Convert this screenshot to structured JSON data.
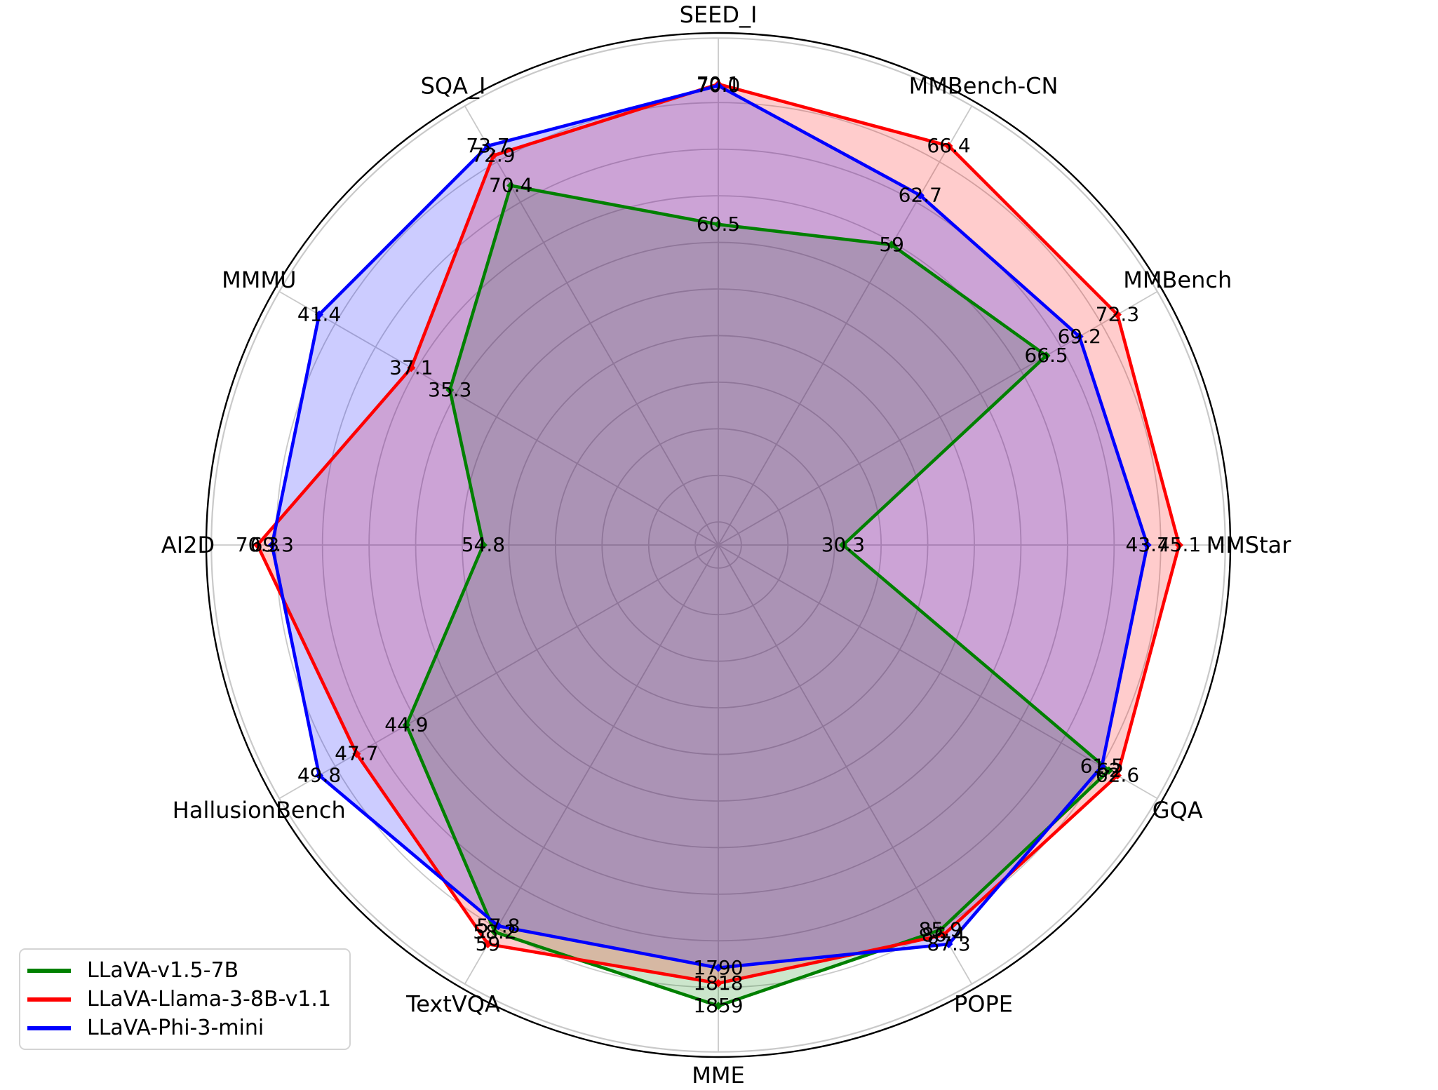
{
  "figure": {
    "background_color": "#ffffff",
    "grid_color": "#c9c9c9",
    "outline_color": "#000000"
  },
  "legend": {
    "position": "lower left",
    "items": [
      {
        "label": "LLaVA-v1.5-7B",
        "color": "#008000"
      },
      {
        "label": "LLaVA-Llama-3-8B-v1.1",
        "color": "#ff0000"
      },
      {
        "label": "LLaVA-Phi-3-mini",
        "color": "#0000ff"
      }
    ]
  },
  "chart_data": {
    "type": "radar",
    "axes": [
      "SEED_I",
      "MMBench-CN",
      "MMBench",
      "MMStar",
      "GQA",
      "POPE",
      "MME",
      "TextVQA",
      "HallusionBench",
      "AI2D",
      "MMMU",
      "SQA_I"
    ],
    "series": [
      {
        "name": "LLaVA-v1.5-7B",
        "color": "#008000",
        "values": [
          "60.5",
          "59",
          "66.5",
          "30.3",
          "62",
          "85.9",
          "1859",
          "58.2",
          "44.9",
          "54.8",
          "35.3",
          "70.4"
        ]
      },
      {
        "name": "LLaVA-Llama-3-8B-v1.1",
        "color": "#ff0000",
        "values": [
          "70.1",
          "66.4",
          "72.3",
          "45.1",
          "62.6",
          "86.4",
          "1818",
          "59",
          "47.7",
          "70.3",
          "37.1",
          "72.9"
        ]
      },
      {
        "name": "LLaVA-Phi-3-mini",
        "color": "#0000ff",
        "values": [
          "70.0",
          "62.7",
          "69.2",
          "43.7",
          "61.5",
          "87.3",
          "1790",
          "57.8",
          "49.8",
          "69.3",
          "41.4",
          "73.7"
        ]
      }
    ],
    "normalization": "per-axis radial fraction = 2*(value/axis_max) - 1.1 (axis max of three series at fraction 0.9)",
    "fill_opacity": 0.2,
    "grid": true,
    "legend_position": "lower left"
  }
}
